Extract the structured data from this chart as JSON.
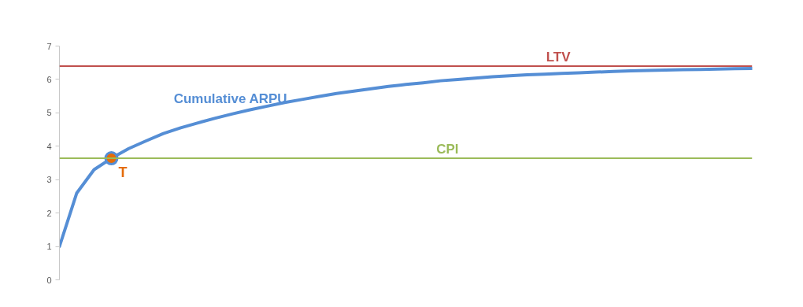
{
  "chart_data": {
    "type": "line",
    "ylim": [
      0,
      7
    ],
    "yticks": [
      0,
      1,
      2,
      3,
      4,
      5,
      6,
      7
    ],
    "grid": false,
    "categories": [
      null,
      null,
      null,
      null,
      null,
      null,
      null,
      null,
      null,
      null,
      null,
      null,
      null,
      null,
      null,
      null,
      null,
      null,
      null,
      null,
      null,
      null,
      null,
      null,
      null,
      null,
      null,
      null,
      null,
      null,
      null,
      null,
      null,
      null,
      null,
      null,
      null,
      null,
      null,
      null,
      null
    ],
    "series": [
      {
        "name": "Cumulative ARPU",
        "color": "#558ed5",
        "values": [
          1.0,
          2.6,
          3.3,
          3.64,
          3.93,
          4.16,
          4.38,
          4.55,
          4.7,
          4.84,
          4.97,
          5.09,
          5.2,
          5.31,
          5.4,
          5.49,
          5.58,
          5.65,
          5.72,
          5.79,
          5.85,
          5.9,
          5.96,
          6.0,
          6.04,
          6.08,
          6.11,
          6.14,
          6.16,
          6.18,
          6.2,
          6.22,
          6.24,
          6.26,
          6.27,
          6.28,
          6.29,
          6.3,
          6.31,
          6.32,
          6.33
        ]
      },
      {
        "name": "T",
        "type": "scatter",
        "color": "#e46c0a",
        "values": [
          null,
          null,
          null,
          3.64,
          null,
          null,
          null,
          null,
          null,
          null,
          null,
          null,
          null,
          null,
          null,
          null,
          null,
          null,
          null,
          null,
          null,
          null,
          null,
          null,
          null,
          null,
          null,
          null,
          null,
          null,
          null,
          null,
          null,
          null,
          null,
          null,
          null,
          null,
          null,
          null,
          null
        ]
      }
    ],
    "ref_lines": [
      {
        "axis": "y",
        "value": 6.4,
        "label": "LTV",
        "color": "#c0504d"
      },
      {
        "axis": "y",
        "value": 3.64,
        "label": "CPI",
        "color": "#9bbb59"
      }
    ]
  }
}
